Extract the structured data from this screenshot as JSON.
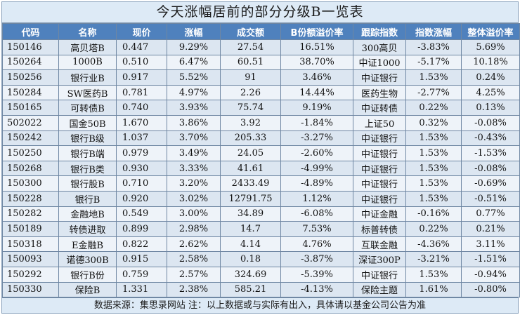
{
  "title": "今天涨幅居前的部分分级B一览表",
  "headers": [
    "代码",
    "名称",
    "现价",
    "涨幅",
    "成交额",
    "B份额溢价率",
    "跟踪指数",
    "指数涨幅",
    "整体溢价率"
  ],
  "rows": [
    [
      "150146",
      "高贝塔B",
      "0.447",
      "9.29%",
      "27.54",
      "16.51%",
      "300高贝",
      "-3.83%",
      "5.69%"
    ],
    [
      "150264",
      "1000B",
      "0.510",
      "6.47%",
      "60.51",
      "38.70%",
      "中证1000",
      "-5.17%",
      "10.18%"
    ],
    [
      "150256",
      "银行业B",
      "0.917",
      "5.52%",
      "91",
      "3.46%",
      "中证银行",
      "1.53%",
      "0.24%"
    ],
    [
      "150284",
      "SW医药B",
      "0.781",
      "4.97%",
      "2.26",
      "14.44%",
      "医药生物",
      "-2.77%",
      "4.25%"
    ],
    [
      "150165",
      "可转债B",
      "0.740",
      "3.93%",
      "75.74",
      "9.19%",
      "中证转债",
      "0.22%",
      "0.13%"
    ],
    [
      "502022",
      "国金50B",
      "1.670",
      "3.86%",
      "3.92",
      "-1.84%",
      "上证50",
      "0.32%",
      "-0.08%"
    ],
    [
      "150242",
      "银行B级",
      "1.037",
      "3.70%",
      "205.33",
      "-3.27%",
      "中证银行",
      "1.53%",
      "-0.43%"
    ],
    [
      "150250",
      "银行B端",
      "0.979",
      "3.49%",
      "24.05",
      "-2.60%",
      "中证银行",
      "1.53%",
      "-1.53%"
    ],
    [
      "150268",
      "银行B类",
      "0.930",
      "3.33%",
      "41.61",
      "-4.99%",
      "中证银行",
      "1.53%",
      "-0.08%"
    ],
    [
      "150300",
      "银行股B",
      "0.710",
      "3.20%",
      "2433.49",
      "-4.89%",
      "中证银行",
      "1.53%",
      "-0.69%"
    ],
    [
      "150228",
      "银行B",
      "0.920",
      "3.02%",
      "12791.75",
      "1.12%",
      "中证银行",
      "1.53%",
      "-0.51%"
    ],
    [
      "150282",
      "金融地B",
      "0.549",
      "3.00%",
      "34.89",
      "-6.08%",
      "中证金融",
      "-0.16%",
      "0.77%"
    ],
    [
      "150189",
      "转债进取",
      "0.899",
      "2.98%",
      "14.7",
      "7.53%",
      "标普转债",
      "0.22%",
      "0.21%"
    ],
    [
      "150318",
      "E金融B",
      "0.822",
      "2.62%",
      "4.14",
      "4.76%",
      "互联金融",
      "-4.36%",
      "3.11%"
    ],
    [
      "150093",
      "诺德300B",
      "0.915",
      "2.58%",
      "0.18",
      "-3.87%",
      "深证300P",
      "-3.21%",
      "-1.51%"
    ],
    [
      "150292",
      "银行B份",
      "0.759",
      "2.57%",
      "324.69",
      "-5.39%",
      "中证银行",
      "1.53%",
      "-0.94%"
    ],
    [
      "150330",
      "保险B",
      "1.331",
      "2.38%",
      "585.21",
      "-4.13%",
      "保险主题",
      "1.61%",
      "-0.80%"
    ]
  ],
  "footer": "数据来源：集思录网站 注：以上数据或与实际有出入，具体请以基金公司公告为准"
}
